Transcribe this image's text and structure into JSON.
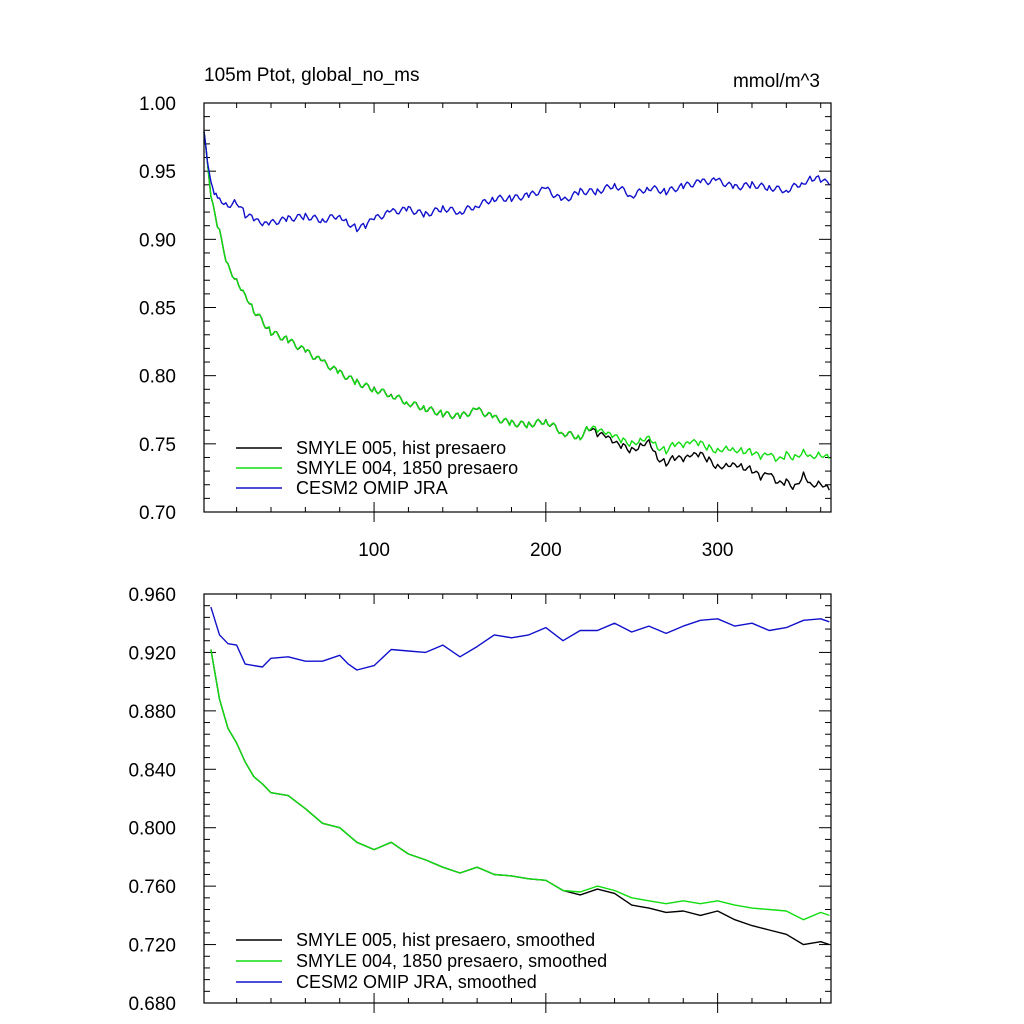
{
  "colors": {
    "black": "#000000",
    "green": "#11dd11",
    "blue": "#1111cc"
  },
  "chart_data": [
    {
      "type": "line",
      "title": "105m Ptot, global_no_ms",
      "units": "mmol/m^3",
      "xlim": [
        1,
        366
      ],
      "ylim": [
        0.7,
        1.0
      ],
      "xticks": [
        100,
        200,
        300
      ],
      "xtick_labels": [
        "100",
        "200",
        "300"
      ],
      "yticks": [
        0.7,
        0.75,
        0.8,
        0.85,
        0.9,
        0.95,
        1.0
      ],
      "ytick_labels": [
        "0.70",
        "0.75",
        "0.80",
        "0.85",
        "0.90",
        "0.95",
        "1.00"
      ],
      "legend_position": "bottom-left",
      "series": [
        {
          "name": "SMYLE 005, hist presaero",
          "color": "black",
          "x": [
            1,
            5,
            10,
            15,
            20,
            25,
            30,
            40,
            50,
            60,
            70,
            80,
            90,
            100,
            110,
            120,
            130,
            140,
            150,
            160,
            170,
            180,
            190,
            200,
            210,
            220,
            225,
            230,
            235,
            240,
            245,
            250,
            255,
            260,
            265,
            270,
            275,
            280,
            285,
            290,
            295,
            300,
            305,
            310,
            315,
            320,
            325,
            330,
            335,
            340,
            345,
            350,
            355,
            360,
            365
          ],
          "y": [
            0.979,
            0.93,
            0.905,
            0.88,
            0.87,
            0.86,
            0.848,
            0.832,
            0.826,
            0.818,
            0.81,
            0.802,
            0.795,
            0.79,
            0.786,
            0.78,
            0.776,
            0.772,
            0.77,
            0.775,
            0.769,
            0.765,
            0.764,
            0.767,
            0.758,
            0.755,
            0.762,
            0.757,
            0.755,
            0.75,
            0.748,
            0.745,
            0.749,
            0.753,
            0.74,
            0.736,
            0.74,
            0.738,
            0.741,
            0.742,
            0.738,
            0.733,
            0.735,
            0.736,
            0.733,
            0.731,
            0.725,
            0.728,
            0.72,
            0.722,
            0.718,
            0.728,
            0.72,
            0.722,
            0.716
          ]
        },
        {
          "name": "SMYLE 004, 1850 presaero",
          "color": "green",
          "x": [
            1,
            5,
            10,
            15,
            20,
            25,
            30,
            40,
            50,
            60,
            70,
            80,
            90,
            100,
            110,
            120,
            130,
            140,
            150,
            160,
            170,
            180,
            190,
            200,
            210,
            220,
            225,
            230,
            235,
            240,
            245,
            250,
            255,
            260,
            265,
            270,
            275,
            280,
            285,
            290,
            295,
            300,
            305,
            310,
            315,
            320,
            325,
            330,
            335,
            340,
            345,
            350,
            355,
            360,
            365
          ],
          "y": [
            0.979,
            0.93,
            0.905,
            0.88,
            0.87,
            0.86,
            0.848,
            0.832,
            0.826,
            0.818,
            0.81,
            0.802,
            0.795,
            0.79,
            0.786,
            0.78,
            0.776,
            0.772,
            0.77,
            0.775,
            0.769,
            0.765,
            0.764,
            0.767,
            0.758,
            0.755,
            0.762,
            0.76,
            0.757,
            0.755,
            0.752,
            0.75,
            0.753,
            0.756,
            0.748,
            0.745,
            0.75,
            0.748,
            0.751,
            0.75,
            0.747,
            0.745,
            0.748,
            0.746,
            0.745,
            0.744,
            0.74,
            0.742,
            0.737,
            0.742,
            0.74,
            0.745,
            0.741,
            0.743,
            0.739
          ]
        },
        {
          "name": "CESM2 OMIP JRA",
          "color": "blue",
          "x": [
            1,
            3,
            5,
            8,
            10,
            15,
            20,
            25,
            30,
            35,
            40,
            50,
            60,
            70,
            80,
            85,
            90,
            95,
            100,
            110,
            120,
            130,
            140,
            150,
            160,
            170,
            180,
            190,
            200,
            210,
            220,
            230,
            240,
            250,
            260,
            270,
            280,
            290,
            300,
            310,
            320,
            330,
            340,
            350,
            355,
            360,
            365
          ],
          "y": [
            0.979,
            0.955,
            0.94,
            0.932,
            0.93,
            0.925,
            0.928,
            0.918,
            0.915,
            0.91,
            0.912,
            0.915,
            0.917,
            0.914,
            0.918,
            0.912,
            0.908,
            0.91,
            0.915,
            0.92,
            0.922,
            0.918,
            0.923,
            0.92,
            0.925,
            0.93,
            0.93,
            0.932,
            0.937,
            0.928,
            0.935,
            0.935,
            0.94,
            0.932,
            0.938,
            0.935,
            0.939,
            0.942,
            0.943,
            0.938,
            0.94,
            0.938,
            0.936,
            0.942,
            0.945,
            0.944,
            0.94
          ]
        }
      ]
    },
    {
      "type": "line",
      "title": "",
      "xlim": [
        1,
        366
      ],
      "ylim": [
        0.68,
        0.96
      ],
      "xticks": [
        100,
        200,
        300
      ],
      "yticks": [
        0.68,
        0.72,
        0.76,
        0.8,
        0.84,
        0.88,
        0.92,
        0.96
      ],
      "ytick_labels": [
        "0.680",
        "0.720",
        "0.760",
        "0.800",
        "0.840",
        "0.880",
        "0.920",
        "0.960"
      ],
      "legend_position": "bottom-left",
      "series": [
        {
          "name": "SMYLE 005, hist presaero, smoothed",
          "color": "black",
          "x": [
            5,
            10,
            15,
            20,
            25,
            30,
            35,
            40,
            50,
            60,
            70,
            80,
            90,
            100,
            110,
            120,
            130,
            140,
            150,
            160,
            170,
            180,
            190,
            200,
            210,
            220,
            230,
            240,
            250,
            260,
            270,
            280,
            290,
            300,
            310,
            320,
            330,
            340,
            350,
            360,
            365
          ],
          "y": [
            0.922,
            0.888,
            0.868,
            0.858,
            0.845,
            0.835,
            0.83,
            0.824,
            0.822,
            0.813,
            0.803,
            0.8,
            0.79,
            0.785,
            0.79,
            0.782,
            0.778,
            0.773,
            0.769,
            0.773,
            0.768,
            0.767,
            0.765,
            0.764,
            0.757,
            0.754,
            0.758,
            0.755,
            0.747,
            0.745,
            0.742,
            0.743,
            0.74,
            0.743,
            0.737,
            0.733,
            0.73,
            0.727,
            0.72,
            0.722,
            0.72
          ]
        },
        {
          "name": "SMYLE 004, 1850 presaero, smoothed",
          "color": "green",
          "x": [
            5,
            10,
            15,
            20,
            25,
            30,
            35,
            40,
            50,
            60,
            70,
            80,
            90,
            100,
            110,
            120,
            130,
            140,
            150,
            160,
            170,
            180,
            190,
            200,
            210,
            220,
            230,
            240,
            250,
            260,
            270,
            280,
            290,
            300,
            310,
            320,
            330,
            340,
            350,
            360,
            365
          ],
          "y": [
            0.922,
            0.888,
            0.868,
            0.858,
            0.845,
            0.835,
            0.83,
            0.824,
            0.822,
            0.813,
            0.803,
            0.8,
            0.79,
            0.785,
            0.79,
            0.782,
            0.778,
            0.773,
            0.769,
            0.773,
            0.768,
            0.767,
            0.765,
            0.764,
            0.757,
            0.756,
            0.76,
            0.757,
            0.752,
            0.75,
            0.748,
            0.75,
            0.748,
            0.75,
            0.747,
            0.745,
            0.744,
            0.743,
            0.737,
            0.742,
            0.74
          ]
        },
        {
          "name": "CESM2 OMIP JRA, smoothed",
          "color": "blue",
          "x": [
            5,
            10,
            15,
            20,
            25,
            30,
            35,
            40,
            50,
            60,
            70,
            80,
            85,
            90,
            100,
            110,
            120,
            130,
            140,
            150,
            160,
            170,
            180,
            190,
            200,
            210,
            220,
            230,
            240,
            250,
            260,
            270,
            280,
            290,
            300,
            310,
            320,
            330,
            340,
            350,
            360,
            365
          ],
          "y": [
            0.951,
            0.932,
            0.926,
            0.925,
            0.912,
            0.911,
            0.91,
            0.916,
            0.917,
            0.914,
            0.914,
            0.918,
            0.912,
            0.908,
            0.911,
            0.922,
            0.921,
            0.92,
            0.925,
            0.917,
            0.924,
            0.932,
            0.93,
            0.932,
            0.937,
            0.928,
            0.935,
            0.935,
            0.94,
            0.934,
            0.938,
            0.933,
            0.938,
            0.942,
            0.943,
            0.938,
            0.94,
            0.935,
            0.937,
            0.942,
            0.943,
            0.941
          ]
        }
      ]
    }
  ]
}
